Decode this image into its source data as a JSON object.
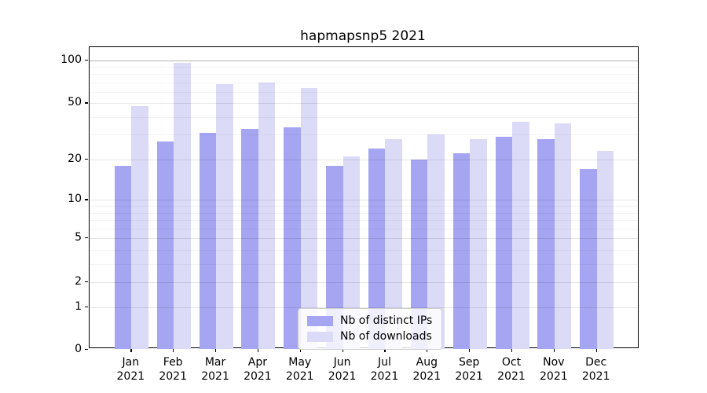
{
  "chart_data": {
    "type": "bar",
    "title": "hapmapsnp5 2021",
    "categories": [
      "Jan 2021",
      "Feb 2021",
      "Mar 2021",
      "Apr 2021",
      "May 2021",
      "Jun 2021",
      "Jul 2021",
      "Aug 2021",
      "Sep 2021",
      "Oct 2021",
      "Nov 2021",
      "Dec 2021"
    ],
    "series": [
      {
        "name": "Nb of distinct IPs",
        "color": "#a5a5f2",
        "values": [
          18,
          27,
          31,
          33,
          34,
          18,
          24,
          20,
          22,
          29,
          28,
          17
        ]
      },
      {
        "name": "Nb of downloads",
        "color": "#dbdbf8",
        "values": [
          48,
          96,
          68,
          70,
          64,
          21,
          28,
          30,
          28,
          37,
          36,
          23
        ]
      }
    ],
    "yscale": "log1p",
    "ylim": [
      0,
      120
    ],
    "yticks": [
      0,
      1,
      2,
      5,
      10,
      20,
      50,
      100
    ],
    "yticks_minor": [
      3,
      4,
      6,
      7,
      8,
      9,
      30,
      40,
      60,
      70,
      80,
      90
    ],
    "grid": true,
    "legend_position": "lower center"
  }
}
